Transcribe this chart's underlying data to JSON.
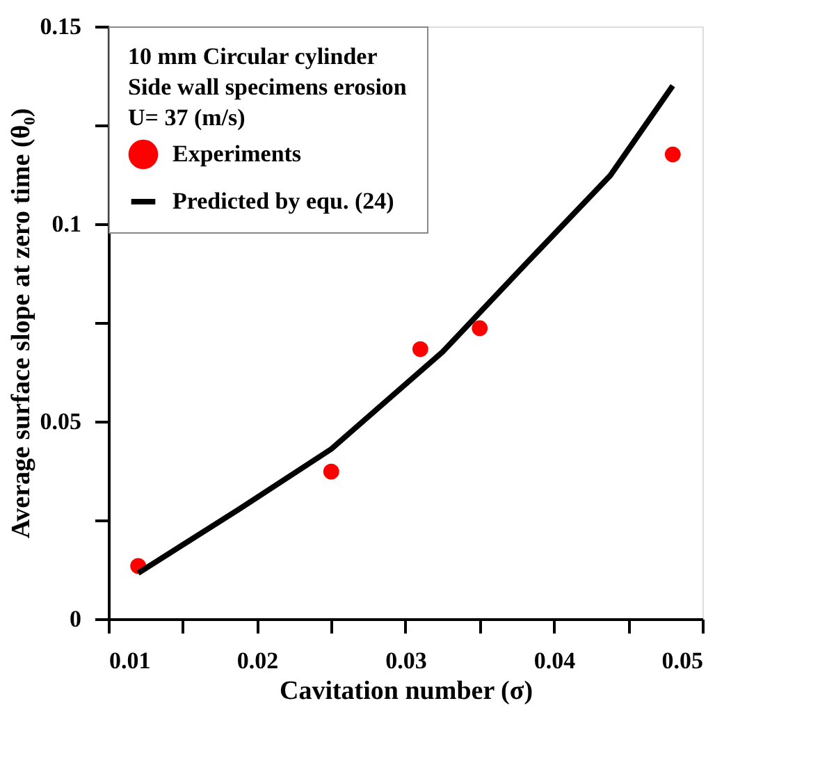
{
  "chart_data": {
    "type": "scatter",
    "xlabel": "Cavitation number (σ)",
    "ylabel": "Average surface slope at zero time (θ₀)",
    "annotations": [
      "10 mm Circular cylinder",
      "Side wall specimens erosion",
      "U= 37 (m/s)"
    ],
    "series": [
      {
        "name": "Experiments",
        "color": "#ff0000",
        "marker": "circle",
        "x": [
          0.012,
          0.025,
          0.031,
          0.035,
          0.048
        ],
        "values": [
          0.0134,
          0.0373,
          0.0683,
          0.0736,
          0.1176
        ]
      },
      {
        "name": "Predicted by equ. (24)",
        "type": "line",
        "color": "#000000",
        "marker": "none",
        "line_style": "solid",
        "x": [
          0.012,
          0.0188,
          0.025,
          0.0325,
          0.0378,
          0.0438,
          0.048
        ],
        "values": [
          0.0116,
          0.0278,
          0.043,
          0.0676,
          0.0887,
          0.1123,
          0.135
        ]
      }
    ],
    "xlim": [
      0.01,
      0.05
    ],
    "xticks": [
      0.01,
      {
        "value": 0.015,
        "label": null
      },
      0.02,
      {
        "value": 0.025,
        "label": null
      },
      0.03,
      {
        "value": 0.035,
        "label": null
      },
      0.04,
      {
        "value": 0.045,
        "label": null
      },
      0.05
    ],
    "ylim": [
      0,
      0.15
    ],
    "yticks": [
      0,
      {
        "value": 0.025,
        "label": null
      },
      0.05,
      {
        "value": 0.075,
        "label": null
      },
      0.1,
      {
        "value": 0.125,
        "label": null
      },
      0.15
    ],
    "grid": false,
    "legend": "top left"
  }
}
